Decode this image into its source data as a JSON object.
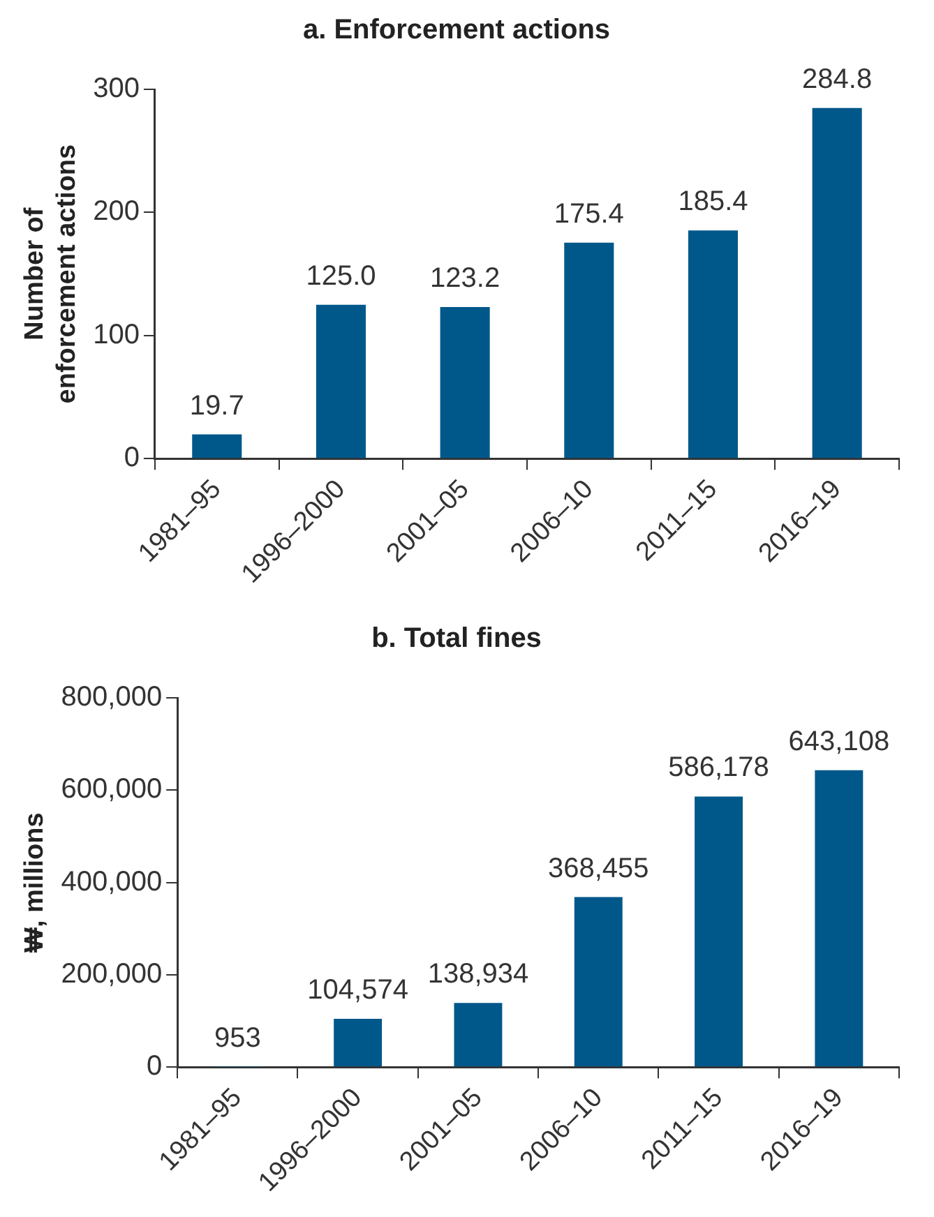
{
  "chart_data": [
    {
      "type": "bar",
      "title": "a. Enforcement actions",
      "ylabel": "Number of\nenforcement actions",
      "categories": [
        "1981–95",
        "1996–2000",
        "2001–05",
        "2006–10",
        "2011–15",
        "2016–19"
      ],
      "values": [
        19.7,
        125.0,
        123.2,
        175.4,
        185.4,
        284.8
      ],
      "value_labels": [
        "19.7",
        "125.0",
        "123.2",
        "175.4",
        "185.4",
        "284.8"
      ],
      "color": "#00578a",
      "ylim": [
        0,
        300
      ],
      "yticks": [
        0,
        100,
        200,
        300
      ],
      "grid": false,
      "legend": false
    },
    {
      "type": "bar",
      "title": "b. Total fines",
      "ylabel": "₩, millions",
      "categories": [
        "1981–95",
        "1996–2000",
        "2001–05",
        "2006–10",
        "2011–15",
        "2016–19"
      ],
      "values": [
        953,
        104574,
        138934,
        368455,
        586178,
        643108
      ],
      "value_labels": [
        "953",
        "104,574",
        "138,934",
        "368,455",
        "586,178",
        "643,108"
      ],
      "color": "#00578a",
      "ylim": [
        0,
        800000
      ],
      "yticks": [
        {
          "value": 0,
          "label": "0"
        },
        {
          "value": 200000,
          "label": "200,000"
        },
        {
          "value": 400000,
          "label": "400,000"
        },
        {
          "value": 600000,
          "label": "600,000"
        },
        {
          "value": 800000,
          "label": "800,000"
        }
      ],
      "grid": false,
      "legend": false
    }
  ]
}
